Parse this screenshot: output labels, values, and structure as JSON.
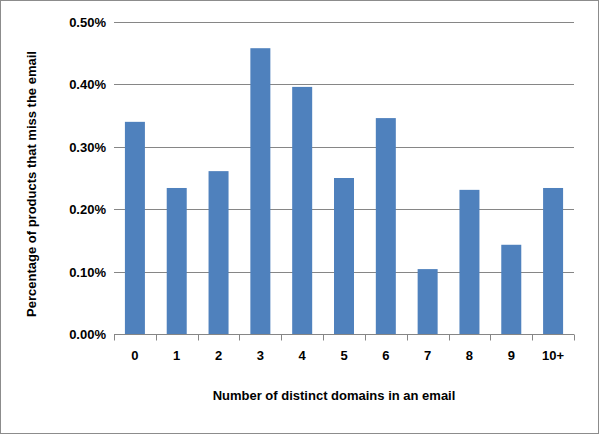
{
  "chart_data": {
    "type": "bar",
    "x_label": "Number of distinct domains in an email",
    "y_label": "Percentage of products that miss the email",
    "categories": [
      "0",
      "1",
      "2",
      "3",
      "4",
      "5",
      "6",
      "7",
      "8",
      "9",
      "10+"
    ],
    "values": [
      0.34,
      0.234,
      0.261,
      0.458,
      0.396,
      0.25,
      0.346,
      0.104,
      0.231,
      0.143,
      0.234
    ],
    "color": "#4f81bd",
    "ylim": [
      0,
      0.5
    ],
    "yticks": [
      {
        "value": 0,
        "label": "0.00%"
      },
      {
        "value": 0.1,
        "label": "0.10%"
      },
      {
        "value": 0.2,
        "label": "0.20%"
      },
      {
        "value": 0.3,
        "label": "0.30%"
      },
      {
        "value": 0.4,
        "label": "0.40%"
      },
      {
        "value": 0.5,
        "label": "0.50%"
      }
    ],
    "grid": true
  }
}
